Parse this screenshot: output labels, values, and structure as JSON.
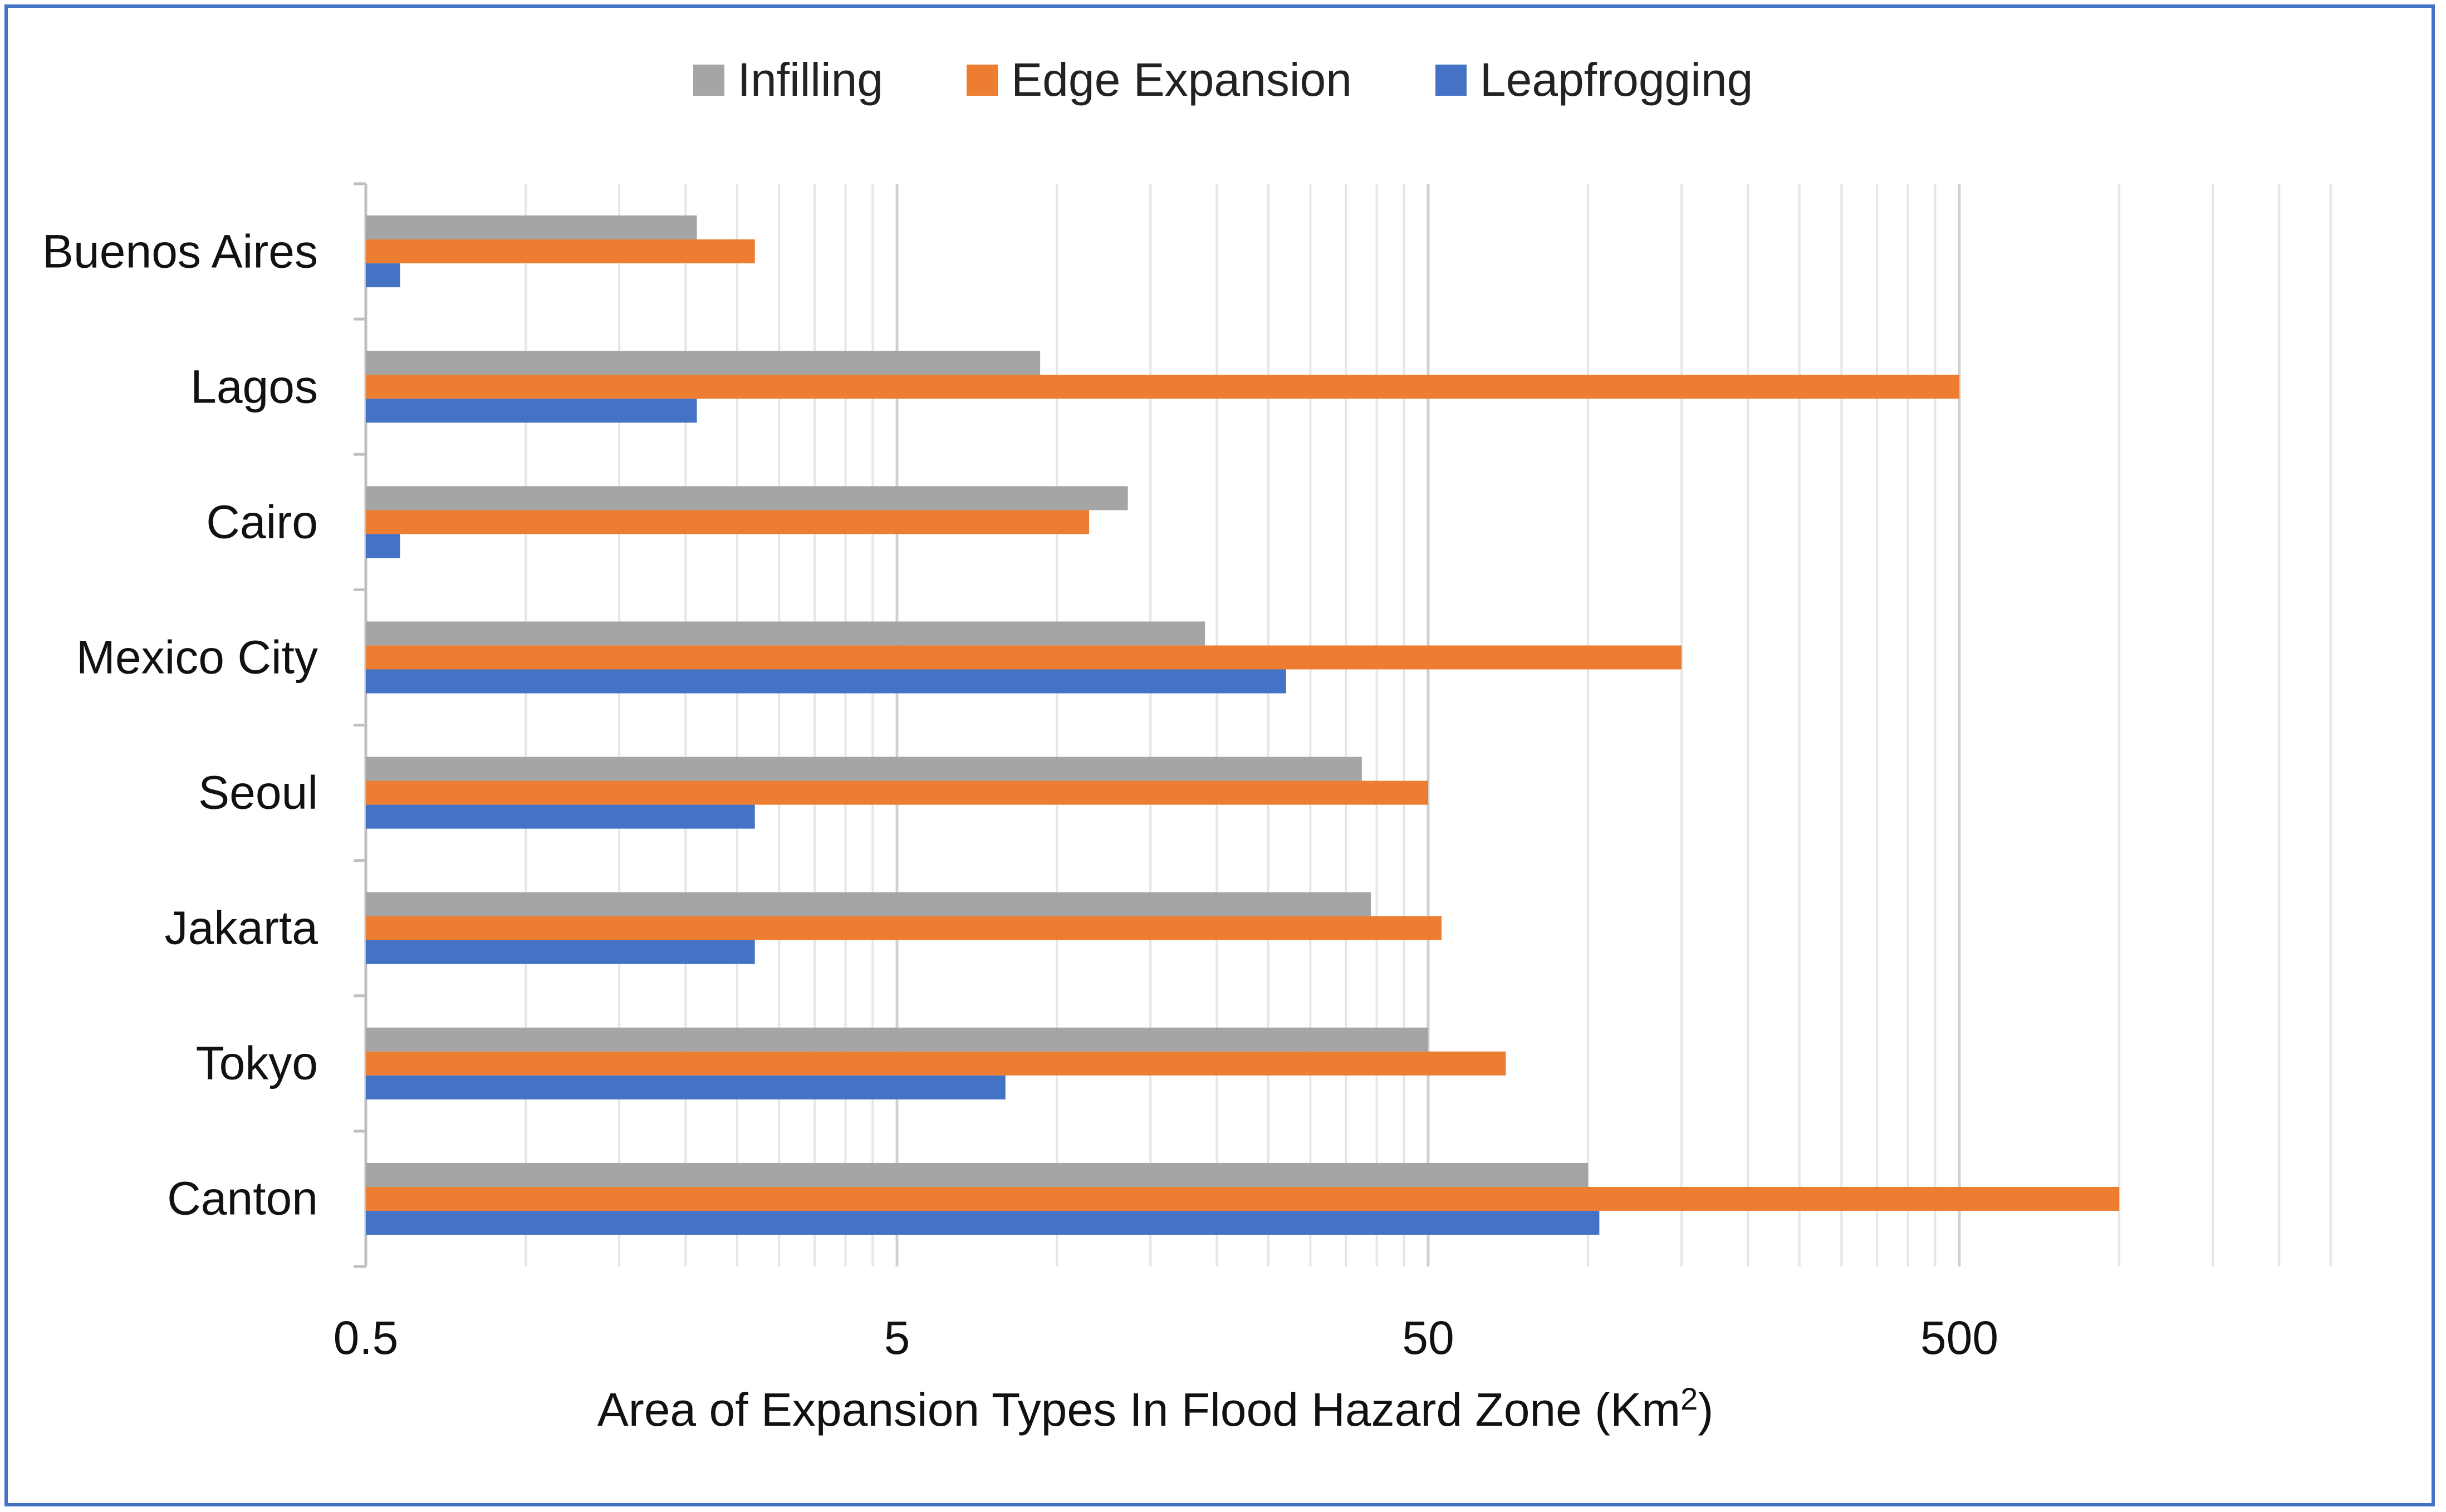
{
  "chart_data": {
    "type": "bar",
    "orientation": "horizontal",
    "x_scale": "log",
    "categories": [
      "Buenos Aires",
      "Lagos",
      "Cairo",
      "Mexico City",
      "Seoul",
      "Jakarta",
      "Tokyo",
      "Canton"
    ],
    "series": [
      {
        "name": "Infilling",
        "color": "#A5A5A5",
        "values": [
          2.1,
          9.3,
          13.6,
          19.0,
          37.5,
          39.0,
          50.0,
          100.0
        ]
      },
      {
        "name": "Edge Expansion",
        "color": "#ED7D31",
        "values": [
          2.7,
          500.0,
          11.5,
          150.0,
          50.0,
          53.0,
          70.0,
          1000.0
        ]
      },
      {
        "name": "Leapfrogging",
        "color": "#4472C4",
        "values": [
          0.58,
          2.1,
          0.58,
          27.0,
          2.7,
          2.7,
          8.0,
          105.0
        ]
      }
    ],
    "xlim": [
      0.5,
      2500
    ],
    "x_ticks": [
      "0.5",
      "5",
      "50",
      "500"
    ],
    "xlabel": "Area of Expansion Types In Flood Hazard Zone (Km",
    "xlabel_sup": "2",
    "xlabel_close": ")",
    "legend_position": "top"
  }
}
